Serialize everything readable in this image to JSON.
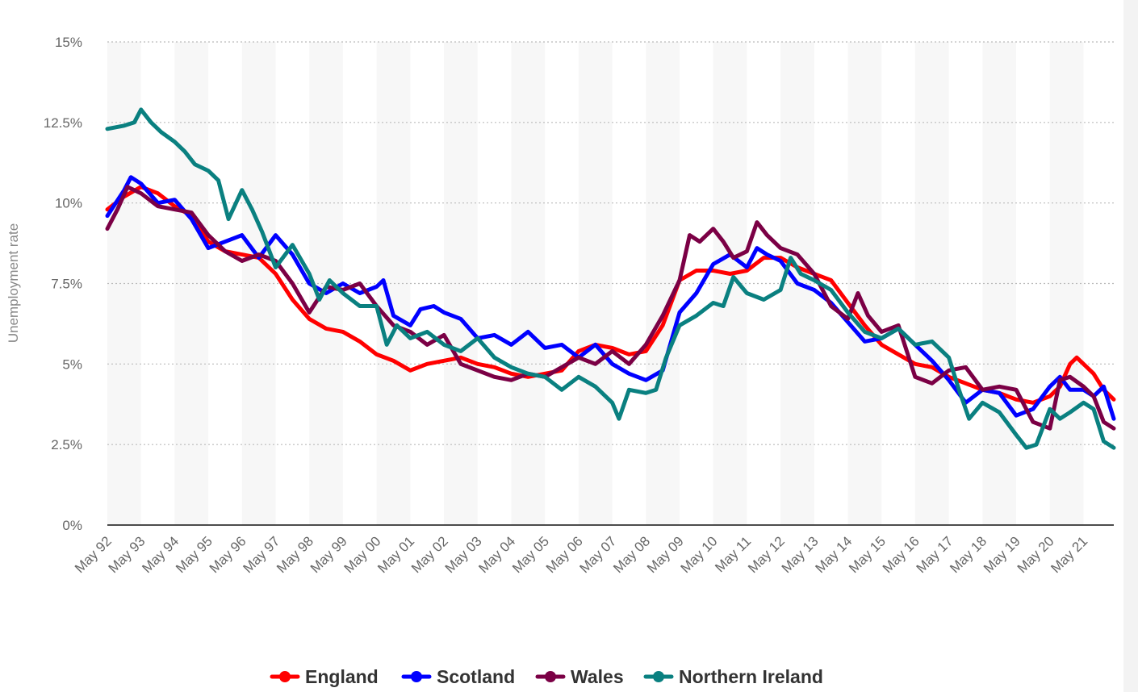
{
  "chart_data": {
    "type": "line",
    "title": "",
    "xlabel": "",
    "ylabel": "Unemployment rate",
    "ylim": [
      0,
      15
    ],
    "y_ticks": [
      "0%",
      "2.5%",
      "5%",
      "7.5%",
      "10%",
      "12.5%",
      "15%"
    ],
    "y_tick_values": [
      0,
      2.5,
      5,
      7.5,
      10,
      12.5,
      15
    ],
    "x_tick_labels": [
      "May 92",
      "May 93",
      "May 94",
      "May 95",
      "May 96",
      "May 97",
      "May 98",
      "May 99",
      "May 00",
      "May 01",
      "May 02",
      "May 03",
      "May 04",
      "May 05",
      "May 06",
      "May 07",
      "May 08",
      "May 09",
      "May 10",
      "May 11",
      "May 12",
      "May 13",
      "May 14",
      "May 15",
      "May 16",
      "May 17",
      "May 18",
      "May 19",
      "May 20",
      "May 21"
    ],
    "x_start_year": 1992,
    "x_end_year": 2021.9,
    "grid": "horizontal-dotted",
    "alternating_year_bands": true,
    "legend_position": "bottom-center",
    "series": [
      {
        "name": "England",
        "color": "#ff0000",
        "points": [
          [
            1992.0,
            9.8
          ],
          [
            1992.5,
            10.2
          ],
          [
            1993.0,
            10.5
          ],
          [
            1993.5,
            10.3
          ],
          [
            1994.0,
            9.9
          ],
          [
            1994.5,
            9.6
          ],
          [
            1995.0,
            8.8
          ],
          [
            1995.5,
            8.5
          ],
          [
            1996.0,
            8.4
          ],
          [
            1996.5,
            8.3
          ],
          [
            1997.0,
            7.8
          ],
          [
            1997.5,
            7.0
          ],
          [
            1998.0,
            6.4
          ],
          [
            1998.5,
            6.1
          ],
          [
            1999.0,
            6.0
          ],
          [
            1999.5,
            5.7
          ],
          [
            2000.0,
            5.3
          ],
          [
            2000.5,
            5.1
          ],
          [
            2001.0,
            4.8
          ],
          [
            2001.5,
            5.0
          ],
          [
            2002.0,
            5.1
          ],
          [
            2002.5,
            5.2
          ],
          [
            2003.0,
            5.0
          ],
          [
            2003.5,
            4.9
          ],
          [
            2004.0,
            4.7
          ],
          [
            2004.5,
            4.6
          ],
          [
            2005.0,
            4.7
          ],
          [
            2005.5,
            4.8
          ],
          [
            2006.0,
            5.4
          ],
          [
            2006.5,
            5.6
          ],
          [
            2007.0,
            5.5
          ],
          [
            2007.5,
            5.3
          ],
          [
            2008.0,
            5.4
          ],
          [
            2008.5,
            6.2
          ],
          [
            2009.0,
            7.6
          ],
          [
            2009.5,
            7.9
          ],
          [
            2010.0,
            7.9
          ],
          [
            2010.5,
            7.8
          ],
          [
            2011.0,
            7.9
          ],
          [
            2011.5,
            8.3
          ],
          [
            2012.0,
            8.3
          ],
          [
            2012.5,
            8.0
          ],
          [
            2013.0,
            7.8
          ],
          [
            2013.5,
            7.6
          ],
          [
            2014.0,
            6.9
          ],
          [
            2014.5,
            6.2
          ],
          [
            2015.0,
            5.6
          ],
          [
            2015.5,
            5.3
          ],
          [
            2016.0,
            5.0
          ],
          [
            2016.5,
            4.9
          ],
          [
            2017.0,
            4.6
          ],
          [
            2017.5,
            4.4
          ],
          [
            2018.0,
            4.2
          ],
          [
            2018.5,
            4.1
          ],
          [
            2019.0,
            3.9
          ],
          [
            2019.5,
            3.8
          ],
          [
            2020.0,
            4.0
          ],
          [
            2020.3,
            4.3
          ],
          [
            2020.6,
            5.0
          ],
          [
            2020.8,
            5.2
          ],
          [
            2021.0,
            5.0
          ],
          [
            2021.3,
            4.7
          ],
          [
            2021.6,
            4.2
          ],
          [
            2021.9,
            3.9
          ]
        ]
      },
      {
        "name": "Scotland",
        "color": "#0000ff",
        "points": [
          [
            1992.0,
            9.6
          ],
          [
            1992.5,
            10.4
          ],
          [
            1992.7,
            10.8
          ],
          [
            1993.0,
            10.6
          ],
          [
            1993.5,
            10.0
          ],
          [
            1994.0,
            10.1
          ],
          [
            1994.5,
            9.5
          ],
          [
            1995.0,
            8.6
          ],
          [
            1995.5,
            8.8
          ],
          [
            1996.0,
            9.0
          ],
          [
            1996.5,
            8.3
          ],
          [
            1997.0,
            9.0
          ],
          [
            1997.5,
            8.4
          ],
          [
            1998.0,
            7.5
          ],
          [
            1998.5,
            7.2
          ],
          [
            1999.0,
            7.5
          ],
          [
            1999.5,
            7.2
          ],
          [
            2000.0,
            7.4
          ],
          [
            2000.2,
            7.6
          ],
          [
            2000.5,
            6.5
          ],
          [
            2001.0,
            6.2
          ],
          [
            2001.3,
            6.7
          ],
          [
            2001.7,
            6.8
          ],
          [
            2002.0,
            6.6
          ],
          [
            2002.5,
            6.4
          ],
          [
            2003.0,
            5.8
          ],
          [
            2003.5,
            5.9
          ],
          [
            2004.0,
            5.6
          ],
          [
            2004.5,
            6.0
          ],
          [
            2005.0,
            5.5
          ],
          [
            2005.5,
            5.6
          ],
          [
            2006.0,
            5.2
          ],
          [
            2006.5,
            5.6
          ],
          [
            2007.0,
            5.0
          ],
          [
            2007.5,
            4.7
          ],
          [
            2008.0,
            4.5
          ],
          [
            2008.5,
            4.8
          ],
          [
            2009.0,
            6.6
          ],
          [
            2009.5,
            7.2
          ],
          [
            2010.0,
            8.1
          ],
          [
            2010.5,
            8.4
          ],
          [
            2011.0,
            8.0
          ],
          [
            2011.3,
            8.6
          ],
          [
            2011.6,
            8.4
          ],
          [
            2012.0,
            8.2
          ],
          [
            2012.5,
            7.5
          ],
          [
            2013.0,
            7.3
          ],
          [
            2013.5,
            6.9
          ],
          [
            2014.0,
            6.3
          ],
          [
            2014.5,
            5.7
          ],
          [
            2015.0,
            5.8
          ],
          [
            2015.5,
            6.1
          ],
          [
            2016.0,
            5.6
          ],
          [
            2016.5,
            5.1
          ],
          [
            2017.0,
            4.5
          ],
          [
            2017.5,
            3.8
          ],
          [
            2018.0,
            4.2
          ],
          [
            2018.5,
            4.1
          ],
          [
            2019.0,
            3.4
          ],
          [
            2019.5,
            3.6
          ],
          [
            2020.0,
            4.3
          ],
          [
            2020.3,
            4.6
          ],
          [
            2020.6,
            4.2
          ],
          [
            2021.0,
            4.2
          ],
          [
            2021.3,
            4.0
          ],
          [
            2021.6,
            4.3
          ],
          [
            2021.9,
            3.3
          ]
        ]
      },
      {
        "name": "Wales",
        "color": "#7b0045",
        "points": [
          [
            1992.0,
            9.2
          ],
          [
            1992.3,
            9.8
          ],
          [
            1992.6,
            10.5
          ],
          [
            1993.0,
            10.3
          ],
          [
            1993.5,
            9.9
          ],
          [
            1994.0,
            9.8
          ],
          [
            1994.5,
            9.7
          ],
          [
            1995.0,
            9.0
          ],
          [
            1995.5,
            8.5
          ],
          [
            1996.0,
            8.2
          ],
          [
            1996.5,
            8.4
          ],
          [
            1997.0,
            8.2
          ],
          [
            1997.5,
            7.5
          ],
          [
            1998.0,
            6.6
          ],
          [
            1998.5,
            7.4
          ],
          [
            1999.0,
            7.3
          ],
          [
            1999.5,
            7.5
          ],
          [
            2000.0,
            6.8
          ],
          [
            2000.5,
            6.2
          ],
          [
            2001.0,
            6.0
          ],
          [
            2001.5,
            5.6
          ],
          [
            2002.0,
            5.9
          ],
          [
            2002.5,
            5.0
          ],
          [
            2003.0,
            4.8
          ],
          [
            2003.5,
            4.6
          ],
          [
            2004.0,
            4.5
          ],
          [
            2004.5,
            4.7
          ],
          [
            2005.0,
            4.6
          ],
          [
            2005.5,
            4.9
          ],
          [
            2006.0,
            5.2
          ],
          [
            2006.5,
            5.0
          ],
          [
            2007.0,
            5.4
          ],
          [
            2007.5,
            5.0
          ],
          [
            2008.0,
            5.6
          ],
          [
            2008.5,
            6.5
          ],
          [
            2009.0,
            7.6
          ],
          [
            2009.3,
            9.0
          ],
          [
            2009.6,
            8.8
          ],
          [
            2010.0,
            9.2
          ],
          [
            2010.3,
            8.8
          ],
          [
            2010.6,
            8.3
          ],
          [
            2011.0,
            8.5
          ],
          [
            2011.3,
            9.4
          ],
          [
            2011.6,
            9.0
          ],
          [
            2012.0,
            8.6
          ],
          [
            2012.5,
            8.4
          ],
          [
            2013.0,
            7.8
          ],
          [
            2013.5,
            6.8
          ],
          [
            2014.0,
            6.4
          ],
          [
            2014.3,
            7.2
          ],
          [
            2014.6,
            6.5
          ],
          [
            2015.0,
            6.0
          ],
          [
            2015.5,
            6.2
          ],
          [
            2016.0,
            4.6
          ],
          [
            2016.5,
            4.4
          ],
          [
            2017.0,
            4.8
          ],
          [
            2017.5,
            4.9
          ],
          [
            2018.0,
            4.2
          ],
          [
            2018.5,
            4.3
          ],
          [
            2019.0,
            4.2
          ],
          [
            2019.5,
            3.2
          ],
          [
            2020.0,
            3.0
          ],
          [
            2020.3,
            4.5
          ],
          [
            2020.6,
            4.6
          ],
          [
            2021.0,
            4.3
          ],
          [
            2021.3,
            4.0
          ],
          [
            2021.6,
            3.2
          ],
          [
            2021.9,
            3.0
          ]
        ]
      },
      {
        "name": "Northern Ireland",
        "color": "#0a8080",
        "points": [
          [
            1992.0,
            12.3
          ],
          [
            1992.5,
            12.4
          ],
          [
            1992.8,
            12.5
          ],
          [
            1993.0,
            12.9
          ],
          [
            1993.3,
            12.5
          ],
          [
            1993.6,
            12.2
          ],
          [
            1994.0,
            11.9
          ],
          [
            1994.3,
            11.6
          ],
          [
            1994.6,
            11.2
          ],
          [
            1995.0,
            11.0
          ],
          [
            1995.3,
            10.7
          ],
          [
            1995.6,
            9.5
          ],
          [
            1996.0,
            10.4
          ],
          [
            1996.3,
            9.8
          ],
          [
            1996.6,
            9.1
          ],
          [
            1997.0,
            8.0
          ],
          [
            1997.5,
            8.7
          ],
          [
            1998.0,
            7.8
          ],
          [
            1998.3,
            7.0
          ],
          [
            1998.6,
            7.6
          ],
          [
            1999.0,
            7.2
          ],
          [
            1999.5,
            6.8
          ],
          [
            2000.0,
            6.8
          ],
          [
            2000.3,
            5.6
          ],
          [
            2000.6,
            6.2
          ],
          [
            2001.0,
            5.8
          ],
          [
            2001.5,
            6.0
          ],
          [
            2002.0,
            5.6
          ],
          [
            2002.5,
            5.4
          ],
          [
            2003.0,
            5.8
          ],
          [
            2003.5,
            5.2
          ],
          [
            2004.0,
            4.9
          ],
          [
            2004.5,
            4.7
          ],
          [
            2005.0,
            4.6
          ],
          [
            2005.5,
            4.2
          ],
          [
            2006.0,
            4.6
          ],
          [
            2006.5,
            4.3
          ],
          [
            2007.0,
            3.8
          ],
          [
            2007.2,
            3.3
          ],
          [
            2007.5,
            4.2
          ],
          [
            2008.0,
            4.1
          ],
          [
            2008.3,
            4.2
          ],
          [
            2008.6,
            5.2
          ],
          [
            2009.0,
            6.2
          ],
          [
            2009.5,
            6.5
          ],
          [
            2010.0,
            6.9
          ],
          [
            2010.3,
            6.8
          ],
          [
            2010.6,
            7.7
          ],
          [
            2011.0,
            7.2
          ],
          [
            2011.5,
            7.0
          ],
          [
            2012.0,
            7.3
          ],
          [
            2012.3,
            8.3
          ],
          [
            2012.6,
            7.8
          ],
          [
            2013.0,
            7.6
          ],
          [
            2013.5,
            7.3
          ],
          [
            2014.0,
            6.6
          ],
          [
            2014.5,
            6.0
          ],
          [
            2015.0,
            5.8
          ],
          [
            2015.5,
            6.1
          ],
          [
            2016.0,
            5.6
          ],
          [
            2016.5,
            5.7
          ],
          [
            2017.0,
            5.2
          ],
          [
            2017.3,
            4.2
          ],
          [
            2017.6,
            3.3
          ],
          [
            2018.0,
            3.8
          ],
          [
            2018.5,
            3.5
          ],
          [
            2019.0,
            2.8
          ],
          [
            2019.3,
            2.4
          ],
          [
            2019.6,
            2.5
          ],
          [
            2020.0,
            3.6
          ],
          [
            2020.3,
            3.3
          ],
          [
            2020.6,
            3.5
          ],
          [
            2021.0,
            3.8
          ],
          [
            2021.3,
            3.6
          ],
          [
            2021.6,
            2.6
          ],
          [
            2021.9,
            2.4
          ]
        ]
      }
    ]
  }
}
